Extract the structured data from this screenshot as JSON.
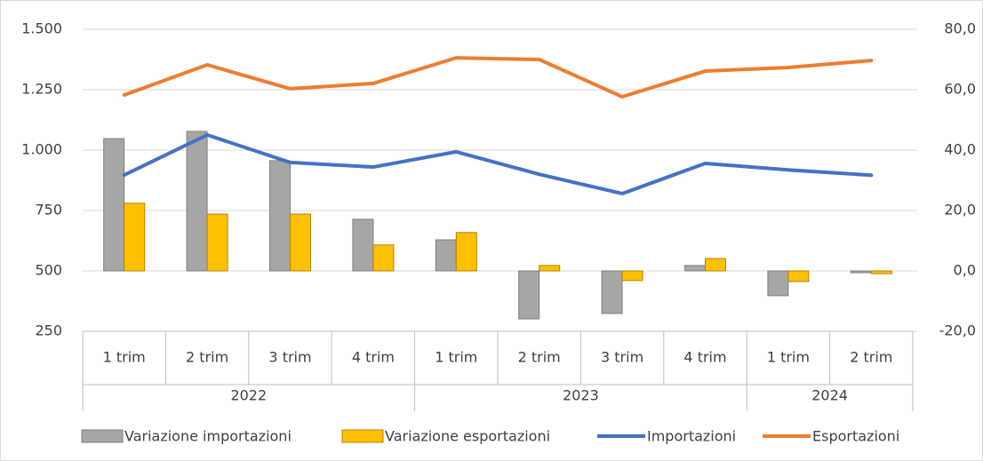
{
  "chart_data": {
    "type": "bar-line",
    "groups": [
      {
        "label": "2022",
        "categories": [
          "1 trim",
          "2 trim",
          "3 trim",
          "4 trim"
        ]
      },
      {
        "label": "2023",
        "categories": [
          "1 trim",
          "2 trim",
          "3 trim",
          "4 trim"
        ]
      },
      {
        "label": "2024",
        "categories": [
          "1 trim",
          "2 trim"
        ]
      }
    ],
    "series": [
      {
        "name": "Variazione importazioni",
        "type": "bar",
        "axis": "y2",
        "color": "#a6a6a6",
        "values": [
          43.8,
          46.2,
          36.5,
          17.1,
          10.3,
          -15.9,
          -14.1,
          1.8,
          -8.2,
          -0.6
        ]
      },
      {
        "name": "Variazione esportazioni",
        "type": "bar",
        "axis": "y2",
        "color": "#ffc000",
        "values": [
          22.4,
          18.8,
          18.8,
          8.6,
          12.7,
          1.8,
          -3.2,
          4.1,
          -3.5,
          -0.9
        ]
      },
      {
        "name": "Importazioni",
        "type": "line",
        "color": "#4472c4",
        "values": [
          897,
          1063,
          949,
          930,
          993,
          900,
          820,
          945,
          918,
          896
        ]
      },
      {
        "name": "Esportazioni",
        "type": "line",
        "color": "#ed7d31",
        "values": [
          1228,
          1353,
          1254,
          1276,
          1382,
          1375,
          1221,
          1327,
          1342,
          1371
        ]
      }
    ],
    "ylim": [
      250,
      1500
    ],
    "yticks": [
      {
        "value": 250,
        "label": "250"
      },
      {
        "value": 500,
        "label": "500"
      },
      {
        "value": 750,
        "label": "750"
      },
      {
        "value": 1000,
        "label": "1.000"
      },
      {
        "value": 1250,
        "label": "1.250"
      },
      {
        "value": 1500,
        "label": "1.500"
      }
    ],
    "y2lim": [
      -20,
      80
    ],
    "y2ticks": [
      {
        "value": -20,
        "label": "-20,0"
      },
      {
        "value": 0,
        "label": "0,0"
      },
      {
        "value": 20,
        "label": "20,0"
      },
      {
        "value": 40,
        "label": "40,0"
      },
      {
        "value": 60,
        "label": "60,0"
      },
      {
        "value": 80,
        "label": "80,0"
      }
    ],
    "grid": true,
    "legend": "bottom"
  }
}
